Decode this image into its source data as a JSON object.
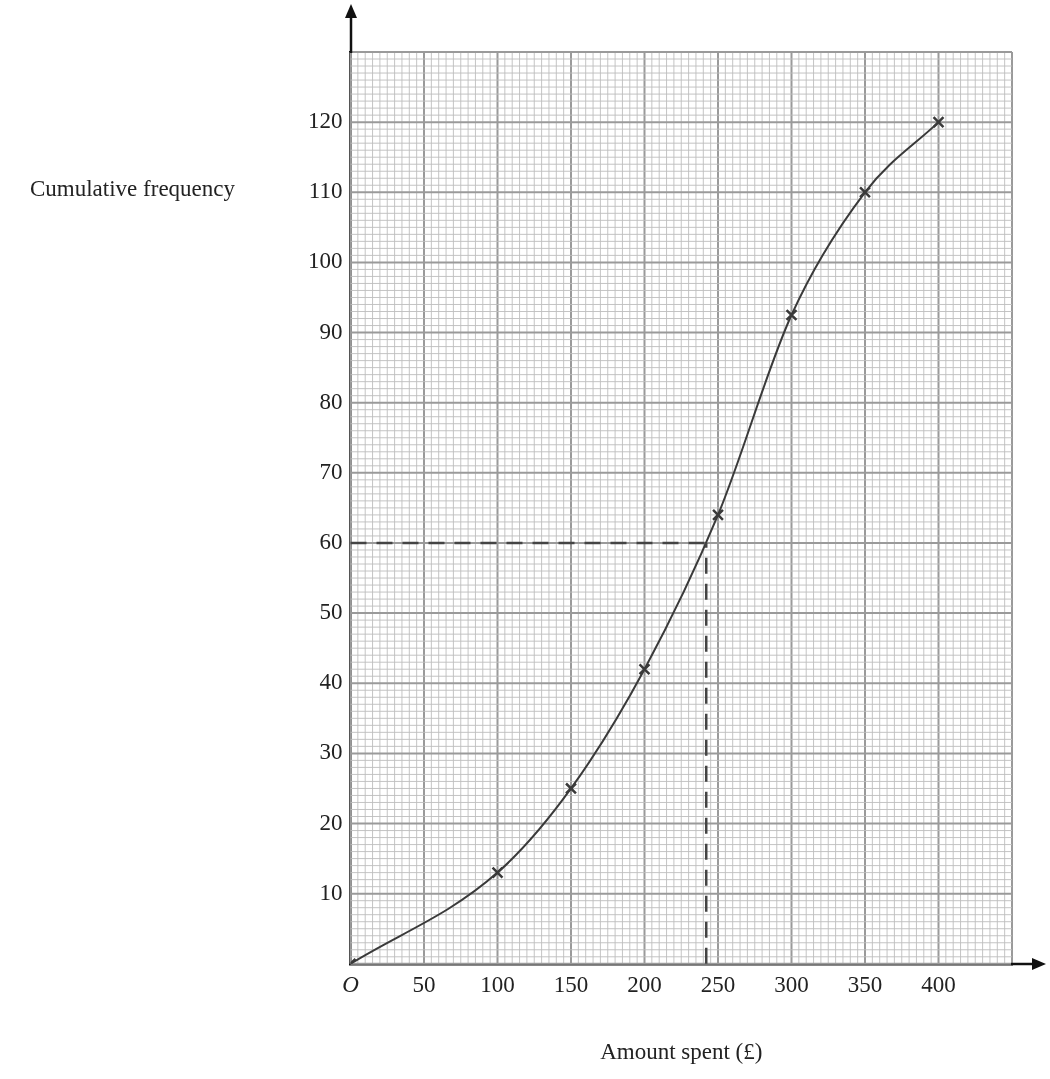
{
  "chart_data": {
    "type": "line",
    "xlabel": "Amount spent (£)",
    "ylabel": "Cumulative frequency",
    "x": [
      0,
      100,
      150,
      200,
      250,
      300,
      350,
      400
    ],
    "series": [
      {
        "color": "#3a3a3a",
        "values": [
          0,
          13,
          25,
          42,
          64,
          92.5,
          110,
          120
        ]
      }
    ],
    "xlim": [
      0,
      450
    ],
    "ylim": [
      0,
      130
    ],
    "xticks": [
      {
        "value": 0,
        "label": "O"
      },
      50,
      100,
      150,
      200,
      250,
      300,
      350,
      400
    ],
    "yticks": [
      {
        "value": 0,
        "label": null
      },
      10,
      20,
      30,
      40,
      50,
      60,
      70,
      80,
      90,
      100,
      110,
      120
    ],
    "grid": true,
    "legend": false,
    "marker": "cross",
    "line_style": "solid",
    "ref_lines": [
      {
        "axis": "y",
        "value": 60,
        "line_style": "dashed",
        "color": "#444444"
      },
      {
        "axis": "x",
        "value": 242,
        "line_style": "dashed",
        "color": "#444444"
      }
    ]
  }
}
